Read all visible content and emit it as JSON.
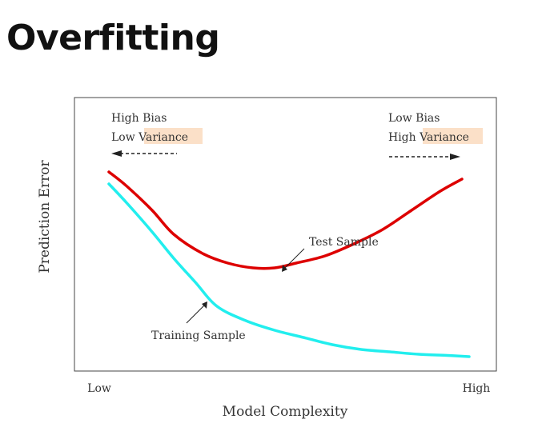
{
  "slide": {
    "title": "Overfitting"
  },
  "chart_data": {
    "type": "line",
    "xlabel": "Model Complexity",
    "ylabel": "Prediction Error",
    "x_ticks": [
      "Low",
      "High"
    ],
    "xlim": [
      0,
      1
    ],
    "ylim": [
      0,
      1
    ],
    "grid": false,
    "series": [
      {
        "name": "Test Sample",
        "color": "#dd0000",
        "x": [
          0.0,
          0.05,
          0.12,
          0.18,
          0.26,
          0.33,
          0.4,
          0.46,
          0.52,
          0.6,
          0.68,
          0.76,
          0.84,
          0.92,
          0.98
        ],
        "y": [
          0.8,
          0.74,
          0.64,
          0.54,
          0.46,
          0.42,
          0.4,
          0.4,
          0.42,
          0.45,
          0.5,
          0.56,
          0.64,
          0.72,
          0.77
        ]
      },
      {
        "name": "Training Sample",
        "color": "#22eeee",
        "x": [
          0.0,
          0.05,
          0.12,
          0.18,
          0.24,
          0.3,
          0.38,
          0.46,
          0.54,
          0.62,
          0.7,
          0.78,
          0.86,
          0.94,
          1.0
        ],
        "y": [
          0.75,
          0.67,
          0.55,
          0.44,
          0.34,
          0.24,
          0.18,
          0.14,
          0.11,
          0.08,
          0.06,
          0.05,
          0.04,
          0.035,
          0.03
        ]
      }
    ],
    "annotations": {
      "left_line1": "High Bias",
      "left_line2_prefix": "Low ",
      "left_line2_highlight": "Variance",
      "right_line1": "Low Bias",
      "right_line2_prefix": "High ",
      "right_line2_highlight": "Variance",
      "highlight_color": "#fbe0c8"
    }
  }
}
